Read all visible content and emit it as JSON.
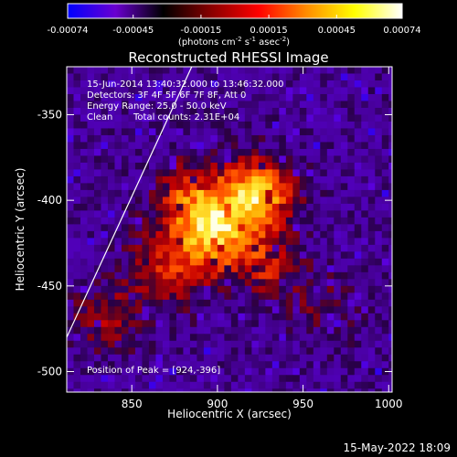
{
  "colorbar": {
    "tick_labels": [
      "-0.00074",
      "-0.00045",
      "-0.00015",
      "0.00015",
      "0.00045",
      "0.00074"
    ],
    "tick_values": [
      -0.00074,
      -0.00045,
      -0.00015,
      0.00015,
      0.00045,
      0.00074
    ],
    "range": [
      -0.00074,
      0.00074
    ],
    "unit_parts": [
      "(photons cm",
      "-2",
      " s",
      "-1",
      " asec",
      "-2",
      ")"
    ],
    "colors": [
      "#0000ff",
      "#6a00d0",
      "#000000",
      "#880000",
      "#ff0000",
      "#ff8c00",
      "#ffff00",
      "#ffffff"
    ]
  },
  "chart_data": {
    "type": "heatmap",
    "title": "Reconstructed RHESSI Image",
    "xlabel": "Heliocentric X (arcsec)",
    "ylabel": "Heliocentric Y (arcsec)",
    "xlim": [
      812,
      1002
    ],
    "ylim": [
      -512,
      -322
    ],
    "xticks": [
      850,
      900,
      950,
      1000
    ],
    "yticks": [
      -350,
      -400,
      -450,
      -500
    ],
    "annotations": [
      "15-Jun-2014 13:40:32.000 to 13:46:32.000",
      "Detectors: 3F 4F 5F 6F 7F 8F, Att 0",
      "Energy Range: 25.0 - 50.0 keV",
      "Clean",
      "Total counts: 2.31E+04",
      "Position of Peak = [924,-396]"
    ],
    "peak": {
      "x": 924,
      "y": -396
    },
    "sources": [
      {
        "x": 924,
        "y": -396,
        "sigma": 14,
        "amp": 1.0
      },
      {
        "x": 900,
        "y": -418,
        "sigma": 16,
        "amp": 0.95
      },
      {
        "x": 884,
        "y": -398,
        "sigma": 14,
        "amp": 0.55
      },
      {
        "x": 872,
        "y": -440,
        "sigma": 16,
        "amp": 0.5
      },
      {
        "x": 930,
        "y": -438,
        "sigma": 12,
        "amp": 0.45
      },
      {
        "x": 836,
        "y": -468,
        "sigma": 14,
        "amp": 0.35
      },
      {
        "x": 960,
        "y": -460,
        "sigma": 16,
        "amp": 0.2
      }
    ],
    "limb_line": [
      [
        812,
        -480
      ],
      [
        885,
        -322
      ]
    ]
  },
  "footer": {
    "timestamp": "15-May-2022 18:09"
  }
}
